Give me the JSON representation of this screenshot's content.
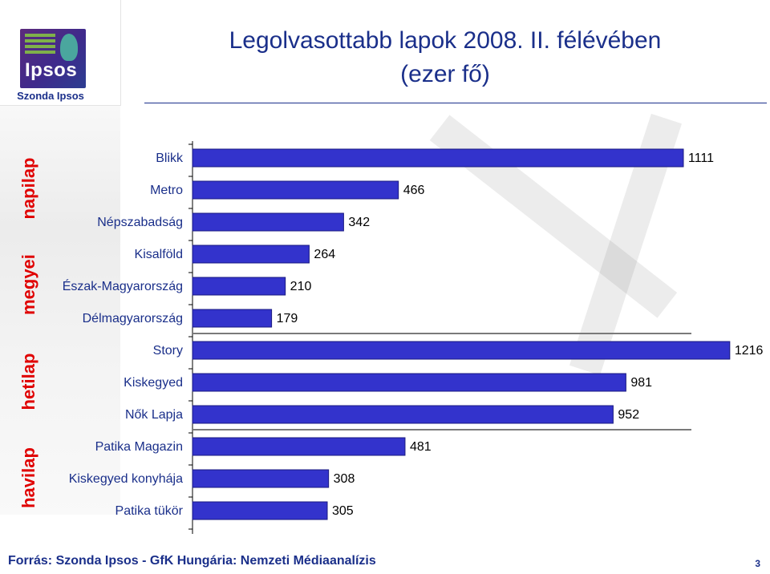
{
  "logo": {
    "word": "Ipsos",
    "caption": "Szonda Ipsos"
  },
  "title": {
    "line1": "Legolvasottabb lapok 2008. II. félévében",
    "line2": "(ezer fő)"
  },
  "groups": {
    "daily": "napilap",
    "regional": "megyei",
    "weekly": "hetilap",
    "monthly": "havilap"
  },
  "footer": "Forrás: Szonda Ipsos - GfK Hungária:  Nemzeti Médiaanalízis",
  "page_number": "3",
  "colors": {
    "bar_fill": "#3333cc",
    "bar_stroke": "#1a1a80",
    "title": "#1a2f8a",
    "group_label": "#e00000"
  },
  "chart_data": {
    "type": "bar",
    "orientation": "horizontal",
    "categories": [
      "Blikk",
      "Metro",
      "Népszabadság",
      "Kisalföld",
      "Észak-Magyarország",
      "Délmagyarország",
      "Story",
      "Kiskegyed",
      "Nők Lapja",
      "Patika Magazin",
      "Kiskegyed konyhája",
      "Patika tükör"
    ],
    "values": [
      1111,
      466,
      342,
      264,
      210,
      179,
      1216,
      981,
      952,
      481,
      308,
      305
    ],
    "xlim": [
      0,
      1300
    ],
    "title": "Legolvasottabb lapok 2008. II. félévében (ezer fő)",
    "xlabel": "",
    "ylabel": "",
    "data_labels": true,
    "grid": false
  }
}
